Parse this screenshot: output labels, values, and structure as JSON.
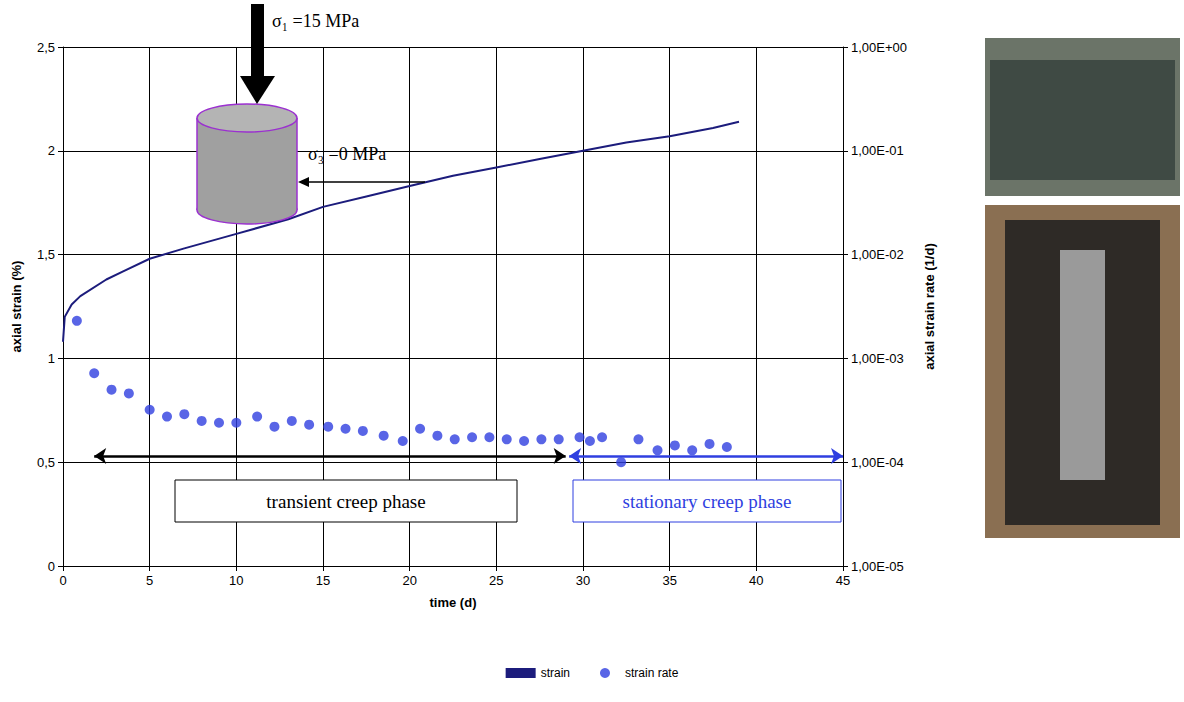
{
  "chart_data": {
    "type": "line",
    "x_label": "time (d)",
    "y_label": "axial strain (%)",
    "y2_label": "axial strain rate (1/d)",
    "xlim": [
      0,
      45
    ],
    "xticks": [
      0,
      5,
      10,
      15,
      20,
      25,
      30,
      35,
      40,
      45
    ],
    "ylim": [
      0,
      2.5
    ],
    "yticks": [
      0,
      {
        "value": 0.5,
        "label": "0,5"
      },
      1,
      {
        "value": 1.5,
        "label": "1,5"
      },
      2,
      {
        "value": 2.5,
        "label": "2,5"
      }
    ],
    "y2lim": [
      1e-05,
      1
    ],
    "y2ticks": [
      {
        "value": 1e-05,
        "label": "1,00E-05"
      },
      {
        "value": 0.0001,
        "label": "1,00E-04"
      },
      {
        "value": 0.001,
        "label": "1,00E-03"
      },
      {
        "value": 0.01,
        "label": "1,00E-02"
      },
      {
        "value": 0.1,
        "label": "1,00E-01"
      },
      {
        "value": 1,
        "label": "1,00E+00"
      }
    ],
    "log": "y2",
    "grid": true,
    "legend": "bottom",
    "series": [
      {
        "name": "strain",
        "type": "line",
        "color": "#1c1c7c",
        "line_style": "solid",
        "marker": "none",
        "x": [
          0,
          0.1,
          0.5,
          1,
          2.5,
          3.5,
          5,
          7,
          10,
          13,
          15,
          17.5,
          20,
          22.5,
          25,
          27.5,
          30,
          32.5,
          35,
          37.5,
          39
        ],
        "values": [
          1.08,
          1.2,
          1.26,
          1.3,
          1.38,
          1.42,
          1.48,
          1.53,
          1.6,
          1.67,
          1.73,
          1.78,
          1.83,
          1.88,
          1.92,
          1.96,
          2.0,
          2.04,
          2.07,
          2.11,
          2.14
        ]
      },
      {
        "name": "strain rate",
        "type": "scatter",
        "axis": "y2",
        "color": "#2f3fe0",
        "marker": "circle",
        "x": [
          0.8,
          1.8,
          2.8,
          3.8,
          5,
          6,
          7,
          8,
          9,
          10,
          11.2,
          12.2,
          13.2,
          14.2,
          15.3,
          16.3,
          17.3,
          18.5,
          19.6,
          20.6,
          21.6,
          22.6,
          23.6,
          24.6,
          25.6,
          26.6,
          27.6,
          28.6,
          29.8,
          30.4,
          31.1,
          32.2,
          33.2,
          34.3,
          35.3,
          36.3,
          37.3,
          38.3
        ],
        "values": [
          0.0023,
          0.00072,
          0.0005,
          0.00046,
          0.00032,
          0.000275,
          0.00029,
          0.00025,
          0.00024,
          0.00024,
          0.000275,
          0.00022,
          0.00025,
          0.00023,
          0.00022,
          0.00021,
          0.0002,
          0.00018,
          0.00016,
          0.00021,
          0.00018,
          0.000166,
          0.000174,
          0.000174,
          0.000166,
          0.00016,
          0.000166,
          0.000166,
          0.000174,
          0.00016,
          0.000174,
          0.0001,
          0.000166,
          0.00013,
          0.000145,
          0.00013,
          0.00015,
          0.00014
        ]
      }
    ],
    "annotations": [
      {
        "text": "σ₁ =15 MPa"
      },
      {
        "text": "σ₃ =0 MPa"
      }
    ],
    "phases": [
      {
        "label": "transient creep phase",
        "start": 1.8,
        "end": 29,
        "color": "#000000"
      },
      {
        "label": "stationary creep phase",
        "start": 29.2,
        "end": 45,
        "color": "#2f3fe0"
      }
    ]
  }
}
